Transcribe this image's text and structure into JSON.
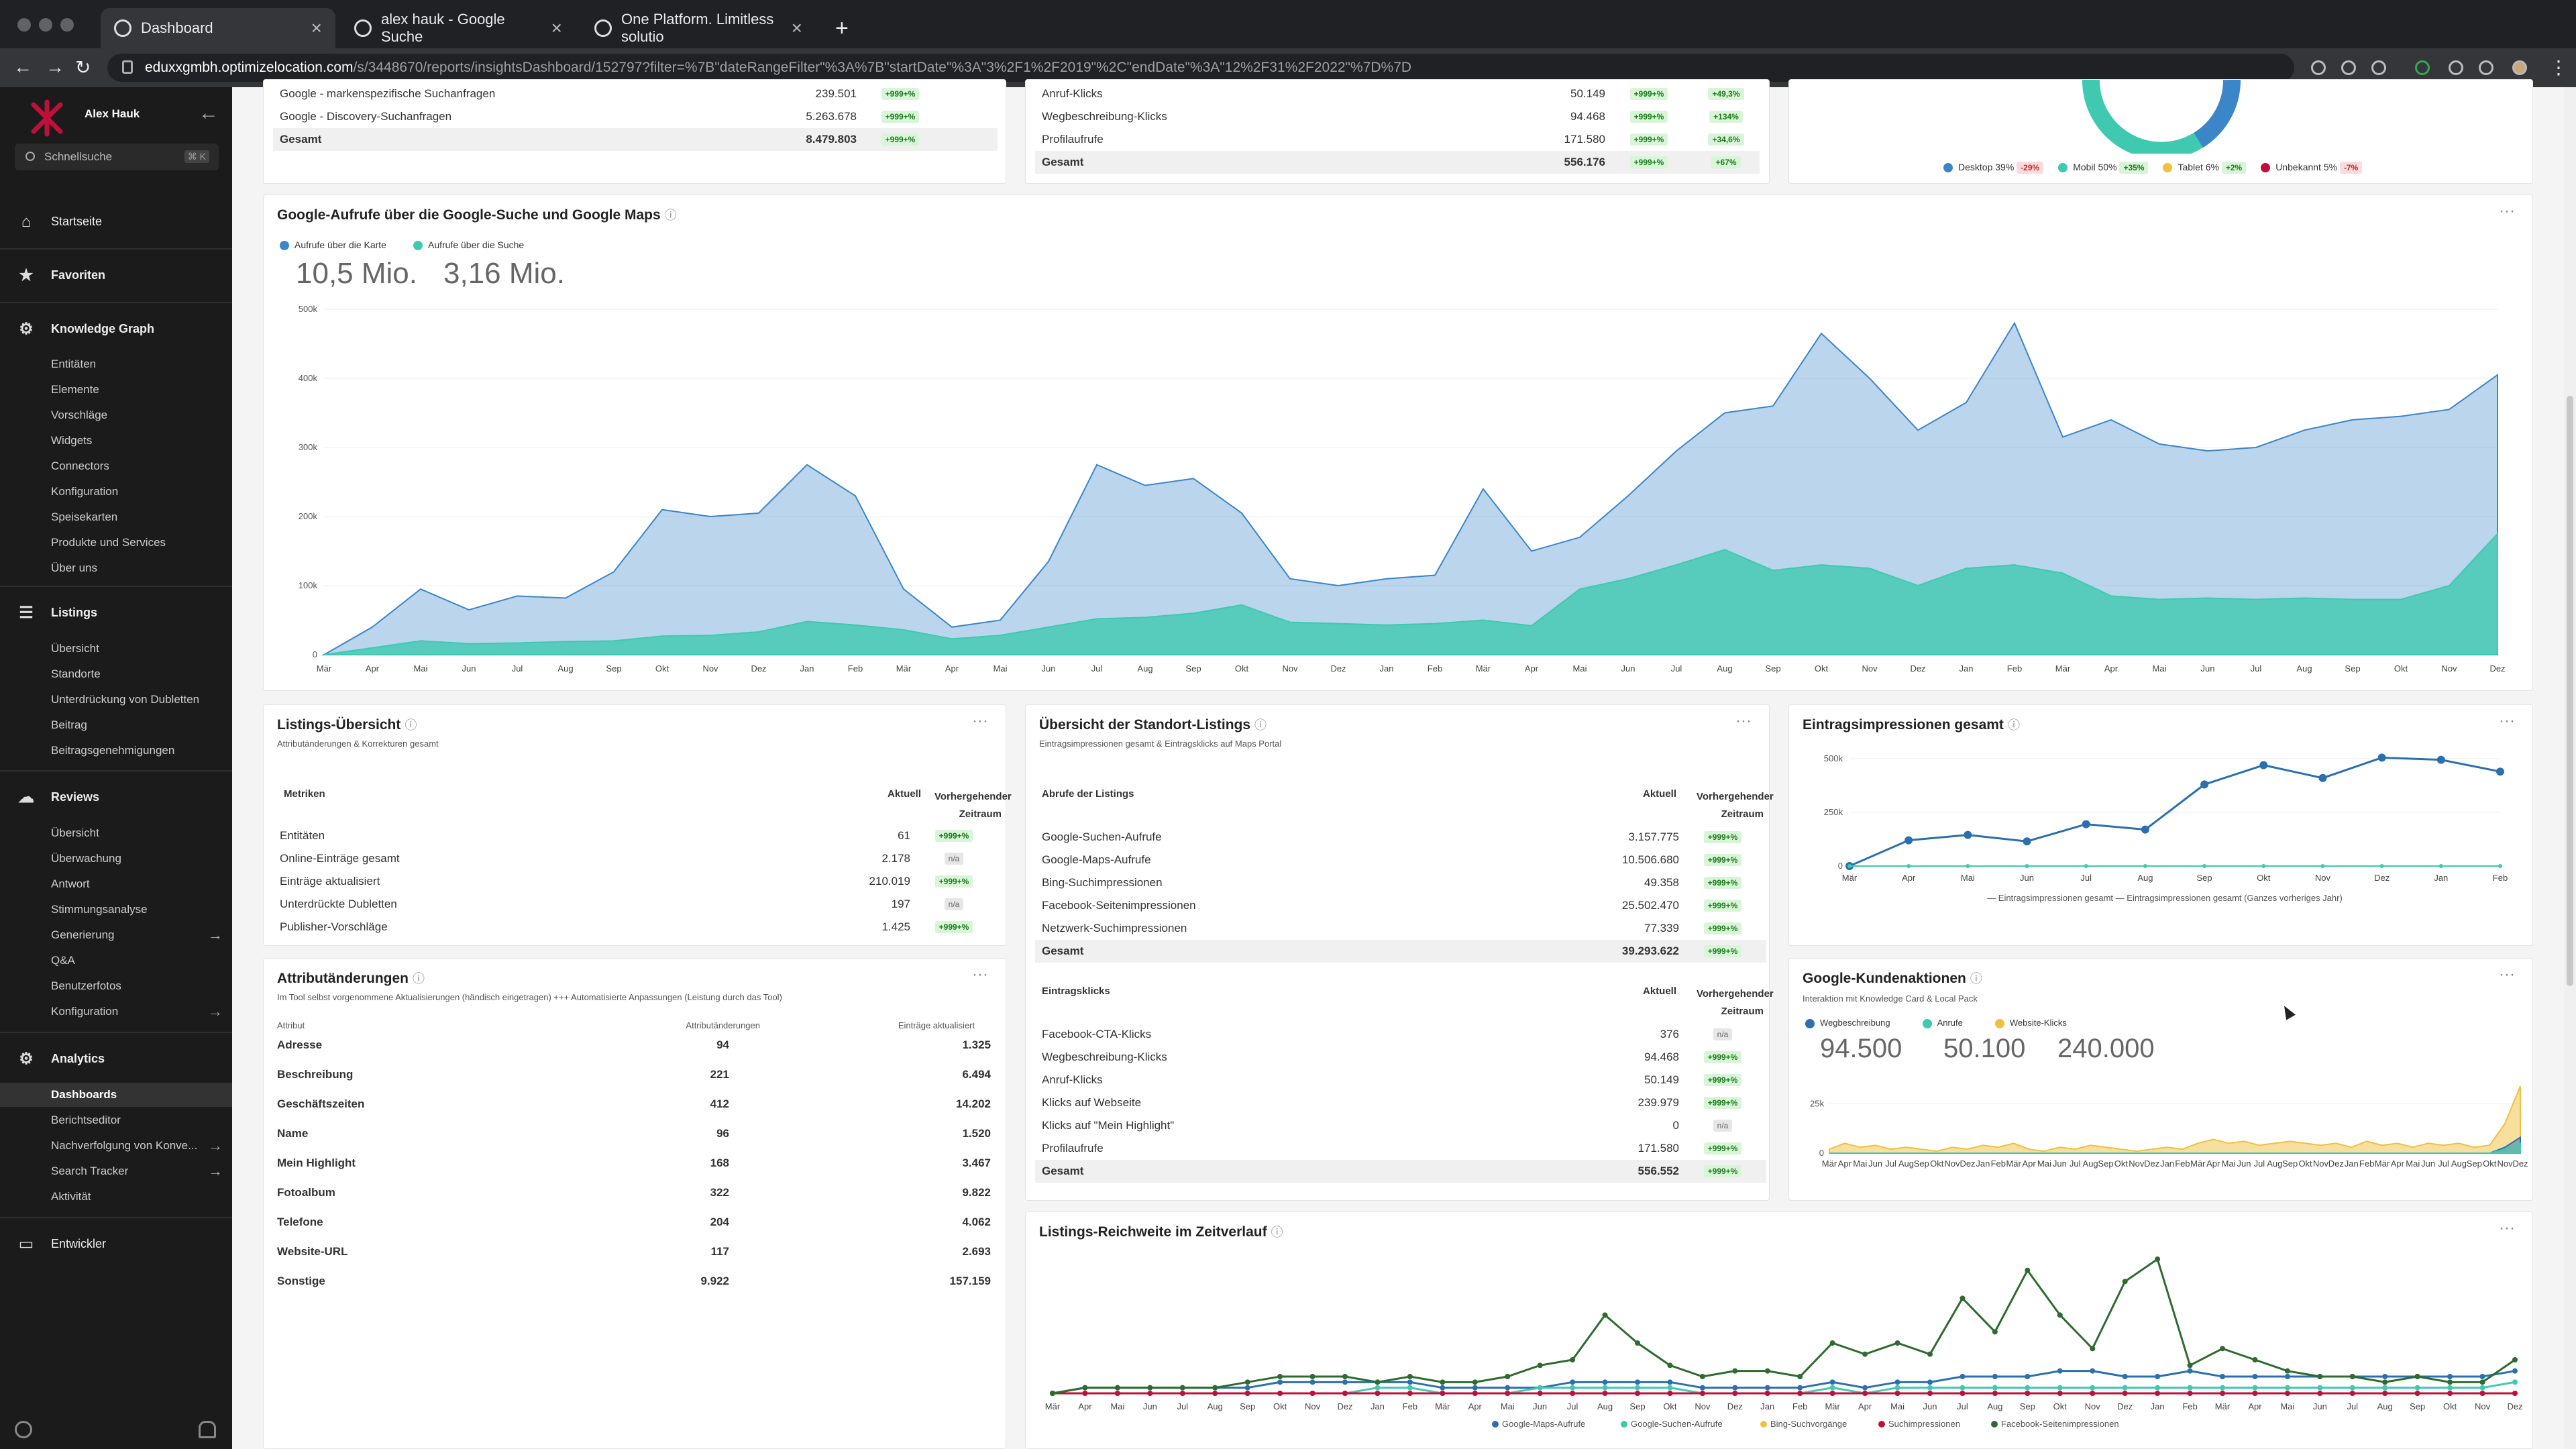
{
  "browser": {
    "tabs": [
      {
        "title": "Dashboard",
        "active": true
      },
      {
        "title": "alex hauk - Google Suche",
        "active": false
      },
      {
        "title": "One Platform. Limitless solutio",
        "active": false
      }
    ],
    "new_tab": "+",
    "url_host": "eduxxgmbh.optimizelocation.com",
    "url_path": "/s/3448670/reports/insightsDashboard/152797?filter=%7B\"dateRangeFilter\"%3A%7B\"startDate\"%3A\"3%2F1%2F2019\"%2C\"endDate\"%3A\"12%2F31%2F2022\"%7D%7D"
  },
  "sidebar": {
    "user": "Alex Hauk",
    "search_placeholder": "Schnellsuche",
    "search_kbd": "⌘ K",
    "start": "Startseite",
    "favorites": "Favoriten",
    "kg": {
      "title": "Knowledge Graph",
      "items": [
        "Entitäten",
        "Elemente",
        "Vorschläge",
        "Widgets",
        "Connectors",
        "Konfiguration",
        "Speisekarten",
        "Produkte und Services",
        "Über uns"
      ]
    },
    "listings": {
      "title": "Listings",
      "items": [
        "Übersicht",
        "Standorte",
        "Unterdrückung von Dubletten",
        "Beitrag",
        "Beitragsgenehmigungen"
      ]
    },
    "reviews": {
      "title": "Reviews",
      "items": [
        "Übersicht",
        "Überwachung",
        "Antwort",
        "Stimmungsanalyse",
        "Generierung",
        "Q&A",
        "Benutzerfotos",
        "Konfiguration"
      ]
    },
    "analytics": {
      "title": "Analytics",
      "items": [
        "Dashboards",
        "Berichtseditor",
        "Nachverfolgung von Konve...",
        "Search Tracker",
        "Aktivität"
      ]
    },
    "developer": "Entwickler"
  },
  "top_left_partial": {
    "rows": [
      {
        "name": "Google - markenspezifische Suchanfragen",
        "value": "239.501",
        "badge": "+999+%"
      },
      {
        "name": "Google - Discovery-Suchanfragen",
        "value": "5.263.678",
        "badge": "+999+%"
      },
      {
        "name": "Gesamt",
        "value": "8.479.803",
        "badge": "+999+%"
      }
    ]
  },
  "top_mid_partial": {
    "rows": [
      {
        "name": "Anruf-Klicks",
        "value": "50.149",
        "badge": "+999+%",
        "badge2": "+49,3%"
      },
      {
        "name": "Wegbeschreibung-Klicks",
        "value": "94.468",
        "badge": "+999+%",
        "badge2": "+134%"
      },
      {
        "name": "Profilaufrufe",
        "value": "171.580",
        "badge": "+999+%",
        "badge2": "+34,6%"
      },
      {
        "name": "Gesamt",
        "value": "556.176",
        "badge": "+999+%",
        "badge2": "+67%"
      }
    ]
  },
  "top_right_partial": {
    "legend": [
      {
        "label": "Desktop 39%",
        "delta": "-29%",
        "color": "#3a86c8",
        "neg": true
      },
      {
        "label": "Mobil 50%",
        "delta": "+35%",
        "color": "#3ec9b0",
        "neg": false
      },
      {
        "label": "Tablet 6%",
        "delta": "+2%",
        "color": "#f0c040",
        "neg": false
      },
      {
        "label": "Unbekannt 5%",
        "delta": "-7%",
        "color": "#c0103a",
        "neg": true
      }
    ]
  },
  "views_chart": {
    "title": "Google-Aufrufe über die Google-Suche und Google Maps",
    "legend": [
      {
        "label": "Aufrufe über die Karte",
        "color": "#3a86c8"
      },
      {
        "label": "Aufrufe über die Suche",
        "color": "#3ec9b0"
      }
    ],
    "totals": [
      "10,5 Mio.",
      "3,16 Mio."
    ],
    "yticks": [
      "500k",
      "400k",
      "300k",
      "200k",
      "100k",
      "0"
    ]
  },
  "listings_overview": {
    "title": "Listings-Übersicht",
    "subtitle": "Attributänderungen & Korrekturen gesamt",
    "headers": {
      "metric": "Metriken",
      "current": "Aktuell",
      "prev": "Vorhergehender Zeitraum"
    },
    "rows": [
      {
        "name": "Entitäten",
        "value": "61",
        "badge": "+999+%",
        "na": false
      },
      {
        "name": "Online-Einträge gesamt",
        "value": "2.178",
        "badge": "n/a",
        "na": true
      },
      {
        "name": "Einträge aktualisiert",
        "value": "210.019",
        "badge": "+999+%",
        "na": false
      },
      {
        "name": "Unterdrückte Dubletten",
        "value": "197",
        "badge": "n/a",
        "na": true
      },
      {
        "name": "Publisher-Vorschläge",
        "value": "1.425",
        "badge": "+999+%",
        "na": false
      }
    ]
  },
  "attr_changes": {
    "title": "Attributänderungen",
    "subtitle": "Im Tool selbst vorgenommene Aktualisierungen (händisch eingetragen) +++ Automatisierte Anpassungen (Leistung durch das Tool)",
    "headers": {
      "attr": "Attribut",
      "changes": "Attributänderungen",
      "updated": "Einträge aktualisiert"
    },
    "rows": [
      {
        "name": "Adresse",
        "changes": "94",
        "updated": "1.325"
      },
      {
        "name": "Beschreibung",
        "changes": "221",
        "updated": "6.494"
      },
      {
        "name": "Geschäftszeiten",
        "changes": "412",
        "updated": "14.202"
      },
      {
        "name": "Name",
        "changes": "96",
        "updated": "1.520"
      },
      {
        "name": "Mein Highlight",
        "changes": "168",
        "updated": "3.467"
      },
      {
        "name": "Fotoalbum",
        "changes": "322",
        "updated": "9.822"
      },
      {
        "name": "Telefone",
        "changes": "204",
        "updated": "4.062"
      },
      {
        "name": "Website-URL",
        "changes": "117",
        "updated": "2.693"
      },
      {
        "name": "Sonstige",
        "changes": "9.922",
        "updated": "157.159"
      }
    ]
  },
  "location_listings": {
    "title": "Übersicht der Standort-Listings",
    "subtitle": "Eintragsimpressionen gesamt & Eintragsklicks auf Maps Portal",
    "headers1": {
      "metric": "Abrufe der Listings",
      "current": "Aktuell",
      "prev": "Vorhergehender Zeitraum"
    },
    "rows1": [
      {
        "name": "Google-Suchen-Aufrufe",
        "value": "3.157.775",
        "badge": "+999+%"
      },
      {
        "name": "Google-Maps-Aufrufe",
        "value": "10.506.680",
        "badge": "+999+%"
      },
      {
        "name": "Bing-Suchimpressionen",
        "value": "49.358",
        "badge": "+999+%"
      },
      {
        "name": "Facebook-Seitenimpressionen",
        "value": "25.502.470",
        "badge": "+999+%"
      },
      {
        "name": "Netzwerk-Suchimpressionen",
        "value": "77.339",
        "badge": "+999+%"
      },
      {
        "name": "Gesamt",
        "value": "39.293.622",
        "badge": "+999+%"
      }
    ],
    "headers2": {
      "metric": "Eintragsklicks",
      "current": "Aktuell",
      "prev": "Vorhergehender Zeitraum"
    },
    "rows2": [
      {
        "name": "Facebook-CTA-Klicks",
        "value": "376",
        "badge": "n/a",
        "na": true
      },
      {
        "name": "Wegbeschreibung-Klicks",
        "value": "94.468",
        "badge": "+999+%",
        "na": false
      },
      {
        "name": "Anruf-Klicks",
        "value": "50.149",
        "badge": "+999+%",
        "na": false
      },
      {
        "name": "Klicks auf Webseite",
        "value": "239.979",
        "badge": "+999+%",
        "na": false
      },
      {
        "name": "Klicks auf \"Mein Highlight\"",
        "value": "0",
        "badge": "n/a",
        "na": true
      },
      {
        "name": "Profilaufrufe",
        "value": "171.580",
        "badge": "+999+%",
        "na": false
      },
      {
        "name": "Gesamt",
        "value": "556.552",
        "badge": "+999+%",
        "na": false
      }
    ]
  },
  "impressions": {
    "title": "Eintragsimpressionen gesamt",
    "yticks": [
      "500k",
      "250k",
      "0"
    ],
    "xticks": [
      "Mär",
      "Apr",
      "Mai",
      "Jun",
      "Jul",
      "Aug",
      "Sep",
      "Okt",
      "Nov",
      "Dez",
      "Jan",
      "Feb"
    ],
    "legend": [
      "Eintragsimpressionen gesamt",
      "Eintragsimpressionen gesamt (Ganzes vorheriges Jahr)"
    ]
  },
  "customer_actions": {
    "title": "Google-Kundenaktionen",
    "subtitle": "Interaktion mit Knowledge Card & Local Pack",
    "legend": [
      {
        "label": "Wegbeschreibung",
        "color": "#2a6fb0"
      },
      {
        "label": "Anrufe",
        "color": "#3ec9b0"
      },
      {
        "label": "Website-Klicks",
        "color": "#f0c040"
      }
    ],
    "totals": [
      "94.500",
      "50.100",
      "240.000"
    ],
    "yticks": [
      "25k",
      "0"
    ]
  },
  "reach": {
    "title": "Listings-Reichweite im Zeitverlauf",
    "legend": [
      {
        "label": "Google-Maps-Aufrufe",
        "color": "#2a6fb0"
      },
      {
        "label": "Google-Suchen-Aufrufe",
        "color": "#3ec9b0"
      },
      {
        "label": "Bing-Suchvorgänge",
        "color": "#f0c040"
      },
      {
        "label": "Suchimpressionen",
        "color": "#c0103a"
      },
      {
        "label": "Facebook-Seitenimpressionen",
        "color": "#2e6b2e"
      }
    ]
  },
  "months": [
    "Mär",
    "Apr",
    "Mai",
    "Jun",
    "Jul",
    "Aug",
    "Sep",
    "Okt",
    "Nov",
    "Dez",
    "Jan",
    "Feb",
    "Mär",
    "Apr",
    "Mai",
    "Jun",
    "Jul",
    "Aug",
    "Sep",
    "Okt",
    "Nov",
    "Dez",
    "Jan",
    "Feb",
    "Mär",
    "Apr",
    "Mai",
    "Jun",
    "Jul",
    "Aug",
    "Sep",
    "Okt",
    "Nov",
    "Dez",
    "Jan",
    "Feb",
    "Mär",
    "Apr",
    "Mai",
    "Jun",
    "Jul",
    "Aug",
    "Sep",
    "Okt",
    "Nov",
    "Dez"
  ],
  "chart_data": [
    {
      "type": "area",
      "title": "Google-Aufrufe über die Google-Suche und Google Maps",
      "ylim": [
        0,
        500000
      ],
      "series": [
        {
          "name": "Aufrufe über die Karte",
          "values": [
            0,
            40000,
            95000,
            65000,
            85000,
            82000,
            120000,
            210000,
            200000,
            205000,
            275000,
            230000,
            95000,
            40000,
            50000,
            135000,
            275000,
            245000,
            255000,
            205000,
            110000,
            100000,
            110000,
            115000,
            240000,
            150000,
            170000,
            230000,
            295000,
            350000,
            360000,
            465000,
            400000,
            325000,
            365000,
            480000,
            315000,
            340000,
            305000,
            295000,
            300000,
            325000,
            340000,
            345000,
            355000,
            405000
          ]
        },
        {
          "name": "Aufrufe über die Suche",
          "values": [
            0,
            10000,
            20000,
            16000,
            17000,
            19000,
            20000,
            27000,
            28000,
            33000,
            48000,
            43000,
            36000,
            23000,
            28000,
            40000,
            52000,
            54000,
            60000,
            72000,
            47000,
            45000,
            43000,
            45000,
            50000,
            42000,
            95000,
            110000,
            130000,
            152000,
            122000,
            130000,
            125000,
            100000,
            125000,
            130000,
            118000,
            85000,
            80000,
            82000,
            80000,
            82000,
            80000,
            80000,
            100000,
            175000
          ]
        }
      ]
    },
    {
      "type": "line",
      "title": "Eintragsimpressionen gesamt",
      "categories": [
        "Mär",
        "Apr",
        "Mai",
        "Jun",
        "Jul",
        "Aug",
        "Sep",
        "Okt",
        "Nov",
        "Dez",
        "Jan",
        "Feb"
      ],
      "ylim": [
        0,
        500000
      ],
      "series": [
        {
          "name": "Eintragsimpressionen gesamt",
          "values": [
            0,
            120000,
            145000,
            115000,
            195000,
            170000,
            380000,
            470000,
            410000,
            505000,
            495000,
            440000
          ]
        },
        {
          "name": "Eintragsimpressionen gesamt (Ganzes vorheriges Jahr)",
          "values": [
            0,
            0,
            0,
            0,
            0,
            0,
            0,
            0,
            0,
            0,
            0,
            0
          ]
        }
      ]
    },
    {
      "type": "area",
      "title": "Google-Kundenaktionen",
      "series": [
        {
          "name": "Wegbeschreibung",
          "values": [
            0,
            0,
            0,
            0,
            0,
            0,
            0,
            0,
            0,
            0,
            0,
            0,
            0,
            0,
            0,
            0,
            0,
            0,
            0,
            0,
            0,
            0,
            0,
            0,
            0,
            0,
            0,
            0,
            0,
            0,
            0,
            0,
            0,
            0,
            0,
            0,
            0,
            0,
            0,
            0,
            0,
            0,
            0,
            0,
            3000,
            8000
          ]
        },
        {
          "name": "Anrufe",
          "values": [
            0,
            0,
            0,
            0,
            0,
            0,
            0,
            0,
            0,
            0,
            0,
            0,
            0,
            0,
            0,
            0,
            0,
            0,
            0,
            0,
            0,
            0,
            0,
            0,
            0,
            0,
            0,
            0,
            0,
            0,
            0,
            0,
            0,
            0,
            0,
            0,
            0,
            0,
            0,
            0,
            0,
            0,
            0,
            0,
            2000,
            5000
          ]
        },
        {
          "name": "Website-Klicks",
          "values": [
            2000,
            5000,
            3000,
            4000,
            2000,
            3000,
            2000,
            1000,
            3000,
            2000,
            4000,
            3000,
            5000,
            2000,
            1000,
            3000,
            2000,
            4000,
            3000,
            2000,
            1000,
            2000,
            3000,
            2000,
            5000,
            7000,
            5000,
            6000,
            4000,
            5000,
            6000,
            5000,
            4000,
            5000,
            3000,
            6000,
            4000,
            5000,
            3000,
            5000,
            4000,
            5000,
            3000,
            4000,
            15000,
            34000
          ]
        }
      ]
    },
    {
      "type": "line",
      "title": "Listings-Reichweite im Zeitverlauf",
      "series": [
        {
          "name": "Google-Maps-Aufrufe",
          "values": [
            0,
            1,
            1,
            1,
            1,
            1,
            1,
            2,
            2,
            2,
            2,
            2,
            1,
            1,
            1,
            1,
            2,
            2,
            2,
            2,
            1,
            1,
            1,
            1,
            2,
            1,
            2,
            2,
            3,
            3,
            3,
            4,
            4,
            3,
            3,
            4,
            3,
            3,
            3,
            3,
            3,
            3,
            3,
            3,
            3,
            4
          ]
        },
        {
          "name": "Google-Suchen-Aufrufe",
          "values": [
            0,
            0,
            0,
            0,
            0,
            0,
            0,
            0,
            0,
            0,
            1,
            1,
            0,
            0,
            0,
            1,
            1,
            1,
            1,
            1,
            0,
            0,
            0,
            0,
            1,
            0,
            1,
            1,
            1,
            1,
            1,
            1,
            1,
            1,
            1,
            1,
            1,
            1,
            1,
            1,
            1,
            1,
            1,
            1,
            1,
            2
          ]
        },
        {
          "name": "Bing-Suchvorgänge",
          "values": [
            0,
            0,
            0,
            0,
            0,
            0,
            0,
            0,
            0,
            0,
            0,
            0,
            0,
            0,
            0,
            0,
            0,
            0,
            0,
            0,
            0,
            0,
            0,
            0,
            0,
            0,
            0,
            0,
            0,
            0,
            0,
            0,
            0,
            0,
            0,
            0,
            0,
            0,
            0,
            0,
            0,
            0,
            0,
            0,
            0,
            0
          ]
        },
        {
          "name": "Suchimpressionen",
          "values": [
            0,
            0,
            0,
            0,
            0,
            0,
            0,
            0,
            0,
            0,
            0,
            0,
            0,
            0,
            0,
            0,
            0,
            0,
            0,
            0,
            0,
            0,
            0,
            0,
            0,
            0,
            0,
            0,
            0,
            0,
            0,
            0,
            0,
            0,
            0,
            0,
            0,
            0,
            0,
            0,
            0,
            0,
            0,
            0,
            0,
            0
          ]
        },
        {
          "name": "Facebook-Seitenimpressionen",
          "values": [
            0,
            1,
            1,
            1,
            1,
            1,
            2,
            3,
            3,
            3,
            2,
            3,
            2,
            2,
            3,
            5,
            6,
            14,
            9,
            5,
            3,
            4,
            4,
            3,
            9,
            7,
            9,
            7,
            17,
            11,
            22,
            14,
            8,
            20,
            24,
            5,
            8,
            6,
            4,
            3,
            3,
            2,
            3,
            2,
            2,
            6
          ]
        }
      ]
    }
  ]
}
